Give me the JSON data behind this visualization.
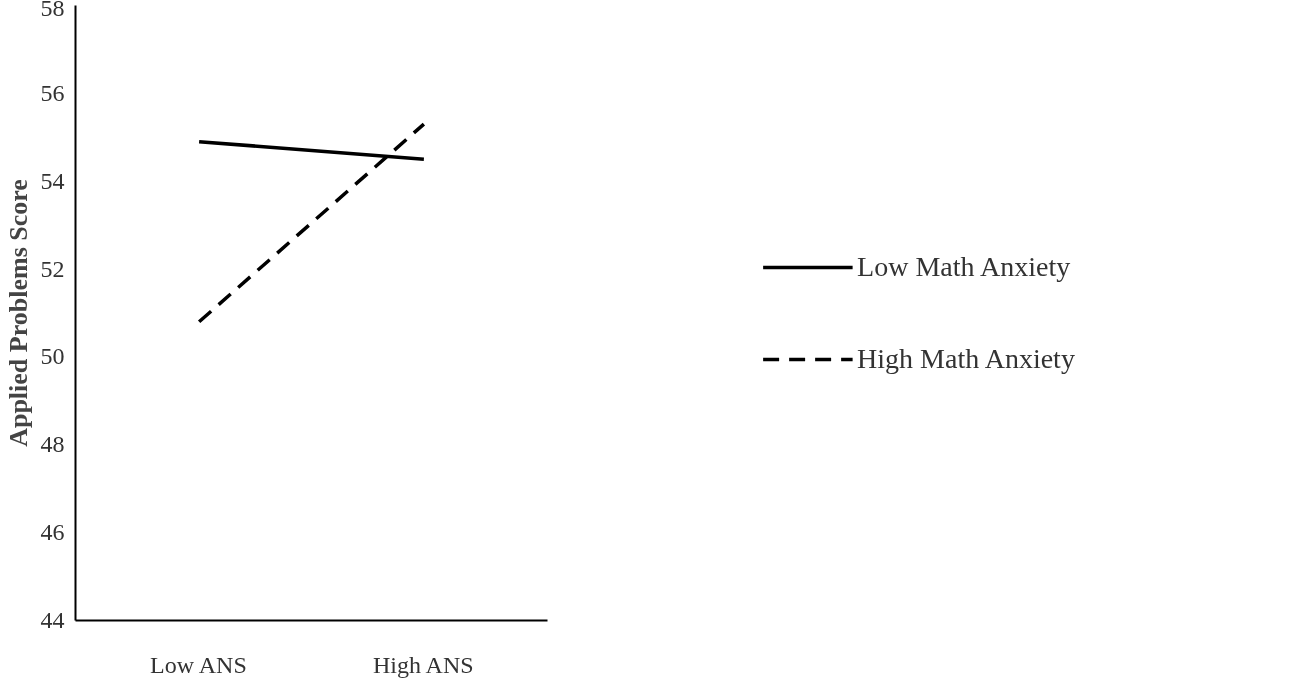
{
  "chart_data": {
    "type": "line",
    "ylabel": "Applied Problems Score",
    "categories": [
      "Low ANS",
      "High ANS"
    ],
    "series": [
      {
        "name": "Low Math Anxiety",
        "color": "#000000",
        "line_style": "solid",
        "values": [
          54.9,
          54.5
        ]
      },
      {
        "name": "High Math Anxiety",
        "color": "#000000",
        "line_style": "dashed",
        "values": [
          50.8,
          55.3
        ]
      }
    ],
    "ylim": [
      44,
      58
    ],
    "yticks": [
      44,
      46,
      48,
      50,
      52,
      54,
      56,
      58
    ],
    "grid": false,
    "legend": "right",
    "marker": "none"
  }
}
